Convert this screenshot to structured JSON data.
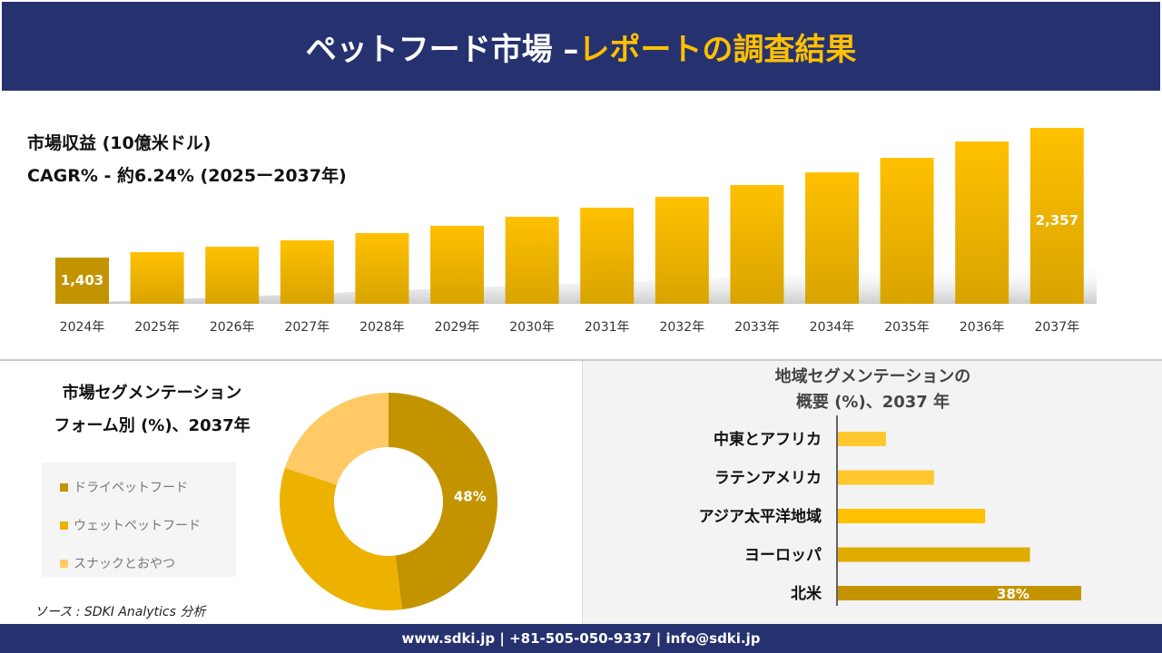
{
  "header": {
    "title_main": "ペットフード市場 –",
    "title_accent": "レポートの調査結果"
  },
  "info": {
    "revenue_label": "市場収益 (10億米ドル)",
    "cagr_label": "CAGR% - 約6.24% (2025ー2037年)"
  },
  "colors": {
    "navy": "#263270",
    "accent": "#FFC000",
    "dark_gold": "#C39400",
    "gold": "#EDB200",
    "light_gold": "#FFCA66"
  },
  "chart_data": [
    {
      "type": "bar",
      "categories": [
        "2024年",
        "2025年",
        "2026年",
        "2027年",
        "2028年",
        "2029年",
        "2030年",
        "2031年",
        "2032年",
        "2033年",
        "2034年",
        "2035年",
        "2036年",
        "2037年"
      ],
      "values": [
        1403,
        1443,
        1483,
        1530,
        1583,
        1637,
        1703,
        1770,
        1850,
        1937,
        2030,
        2137,
        2257,
        2357
      ],
      "data_labels": {
        "0": "1,403",
        "13": "2,357"
      },
      "grid": false
    },
    {
      "type": "pie",
      "title": "市場セグメンテーション フォーム別 (%)、2037年",
      "title_line1": "市場セグメンテーション",
      "title_line2": "フォーム別 (%)、2037年",
      "categories": [
        "ドライペットフード",
        "ウェットペットフード",
        "スナックとおやつ"
      ],
      "values": [
        48,
        32,
        20
      ],
      "colors": [
        "#C39400",
        "#EDB200",
        "#FFCA66"
      ],
      "data_labels": {
        "0": "48%"
      },
      "legend": "left"
    },
    {
      "type": "bar",
      "orientation": "horizontal",
      "title_line1": "地域セグメンテーションの",
      "title_line2": "概要 (%)、2037 年",
      "categories": [
        "中東とアフリカ",
        "ラテンアメリカ",
        "アジア太平洋地域",
        "ヨーロッパ",
        "北米"
      ],
      "values": [
        7.5,
        15,
        23,
        30,
        38
      ],
      "colors": [
        "#FFC82E",
        "#FFC82E",
        "#FFC000",
        "#E0AC00",
        "#C39400"
      ],
      "data_labels": {
        "4": "38%"
      }
    }
  ],
  "source": "ソース : SDKI Analytics 分析",
  "footer": "www.sdki.jp | +81-505-050-9337 | info@sdki.jp"
}
